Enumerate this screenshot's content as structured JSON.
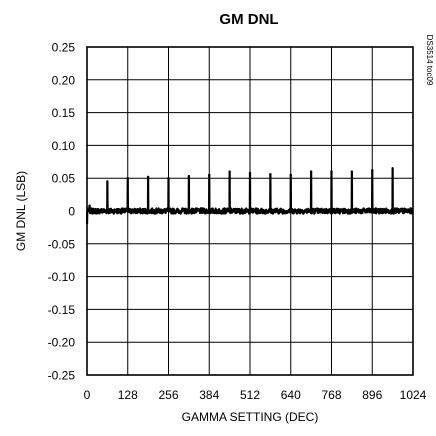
{
  "chart_data": {
    "type": "line",
    "title": "GM DNL",
    "xlabel": "GAMMA SETTING (DEC)",
    "ylabel": "GM DNL (LSB)",
    "side_note": "DS3514 toc09",
    "xlim": [
      0,
      1024
    ],
    "ylim": [
      -0.25,
      0.25
    ],
    "grid": true,
    "x_ticks": [
      0,
      128,
      256,
      384,
      512,
      640,
      768,
      896,
      1024
    ],
    "x_tick_labels": [
      "0",
      "128",
      "256",
      "384",
      "512",
      "640",
      "768",
      "896",
      "1024"
    ],
    "y_ticks": [
      0.25,
      0.2,
      0.15,
      0.1,
      0.05,
      0,
      -0.05,
      -0.1,
      -0.15,
      -0.2,
      -0.25
    ],
    "y_tick_labels": [
      "0.25",
      "0.20",
      "0.15",
      "0.10",
      "0.05",
      "0",
      "-0.05",
      "-0.10",
      "-0.15",
      "-0.20",
      "-0.25"
    ],
    "series": [
      {
        "color": "#000000",
        "baseline": 0.0,
        "noise_band": 0.004,
        "start_dip": {
          "x": 0,
          "y": -0.02
        },
        "spikes": [
          {
            "x": 8,
            "y": 0.008
          },
          {
            "x": 64,
            "y": 0.045
          },
          {
            "x": 128,
            "y": 0.05
          },
          {
            "x": 192,
            "y": 0.052
          },
          {
            "x": 256,
            "y": 0.05
          },
          {
            "x": 320,
            "y": 0.053
          },
          {
            "x": 384,
            "y": 0.055
          },
          {
            "x": 448,
            "y": 0.06
          },
          {
            "x": 512,
            "y": 0.058
          },
          {
            "x": 576,
            "y": 0.056
          },
          {
            "x": 640,
            "y": 0.055
          },
          {
            "x": 704,
            "y": 0.06
          },
          {
            "x": 768,
            "y": 0.06
          },
          {
            "x": 832,
            "y": 0.06
          },
          {
            "x": 896,
            "y": 0.062
          },
          {
            "x": 960,
            "y": 0.065
          }
        ]
      }
    ]
  }
}
